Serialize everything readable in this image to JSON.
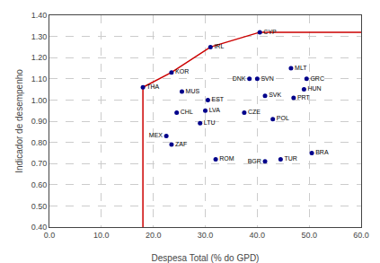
{
  "chart_data": {
    "type": "scatter",
    "xlabel": "Despesa Total (% do GPD)",
    "ylabel": "Indicador de desempenho",
    "xlim": [
      0.0,
      60.0
    ],
    "ylim": [
      0.4,
      1.4
    ],
    "xticks": [
      {
        "value": 0.0,
        "label": "0.0"
      },
      {
        "value": 10.0,
        "label": "10.0"
      },
      {
        "value": 20.0,
        "label": "20.0"
      },
      {
        "value": 30.0,
        "label": "30.0"
      },
      {
        "value": 40.0,
        "label": "40.0"
      },
      {
        "value": 50.0,
        "label": "50.0"
      },
      {
        "value": 60.0,
        "label": "60.0"
      }
    ],
    "yticks": [
      {
        "value": 0.4,
        "label": "0.40"
      },
      {
        "value": 0.5,
        "label": "0.50"
      },
      {
        "value": 0.6,
        "label": "0.60"
      },
      {
        "value": 0.7,
        "label": "0.70"
      },
      {
        "value": 0.8,
        "label": "0.80"
      },
      {
        "value": 0.9,
        "label": "0.90"
      },
      {
        "value": 1.0,
        "label": "1.00"
      },
      {
        "value": 1.1,
        "label": "1.10"
      },
      {
        "value": 1.2,
        "label": "1.20"
      },
      {
        "value": 1.3,
        "label": "1.30"
      },
      {
        "value": 1.4,
        "label": "1.40"
      }
    ],
    "grid": true,
    "series": [
      {
        "type": "line",
        "color": "#CC0000",
        "x": [
          18.0,
          18.0
        ],
        "values": [
          0.4,
          1.06
        ]
      },
      {
        "type": "line",
        "color": "#CC0000",
        "x": [
          18.0,
          23.5,
          31.0,
          40.5,
          60.0
        ],
        "values": [
          1.06,
          1.13,
          1.25,
          1.32,
          1.32
        ]
      },
      {
        "type": "scatter",
        "color": "#00008B",
        "x": [
          18.0,
          23.5,
          25.5,
          24.5,
          22.5,
          23.5,
          31.0,
          30.5,
          30.0,
          29.0,
          32.0,
          40.5,
          41.5,
          37.5,
          43.0,
          41.5,
          44.5,
          46.5,
          49.5,
          49.0,
          47.0,
          50.5,
          40.0,
          38.5
        ],
        "values": [
          1.06,
          1.13,
          1.04,
          0.94,
          0.83,
          0.79,
          1.25,
          1.0,
          0.95,
          0.89,
          0.72,
          1.32,
          1.02,
          0.94,
          0.91,
          0.71,
          0.72,
          1.15,
          1.1,
          1.05,
          1.01,
          0.75,
          1.1,
          1.1
        ],
        "labels": [
          "THA",
          "KOR",
          "MUS",
          "CHL",
          "MEX",
          "ZAF",
          "IRL",
          "EST",
          "LVA",
          "LTU",
          "ROM",
          "CYP",
          "SVK",
          "CZE",
          "POL",
          "BGR",
          "TUR",
          "MLT",
          "GRC",
          "HUN",
          "PRT",
          "BRA",
          "SVN",
          "DNK"
        ]
      }
    ]
  }
}
